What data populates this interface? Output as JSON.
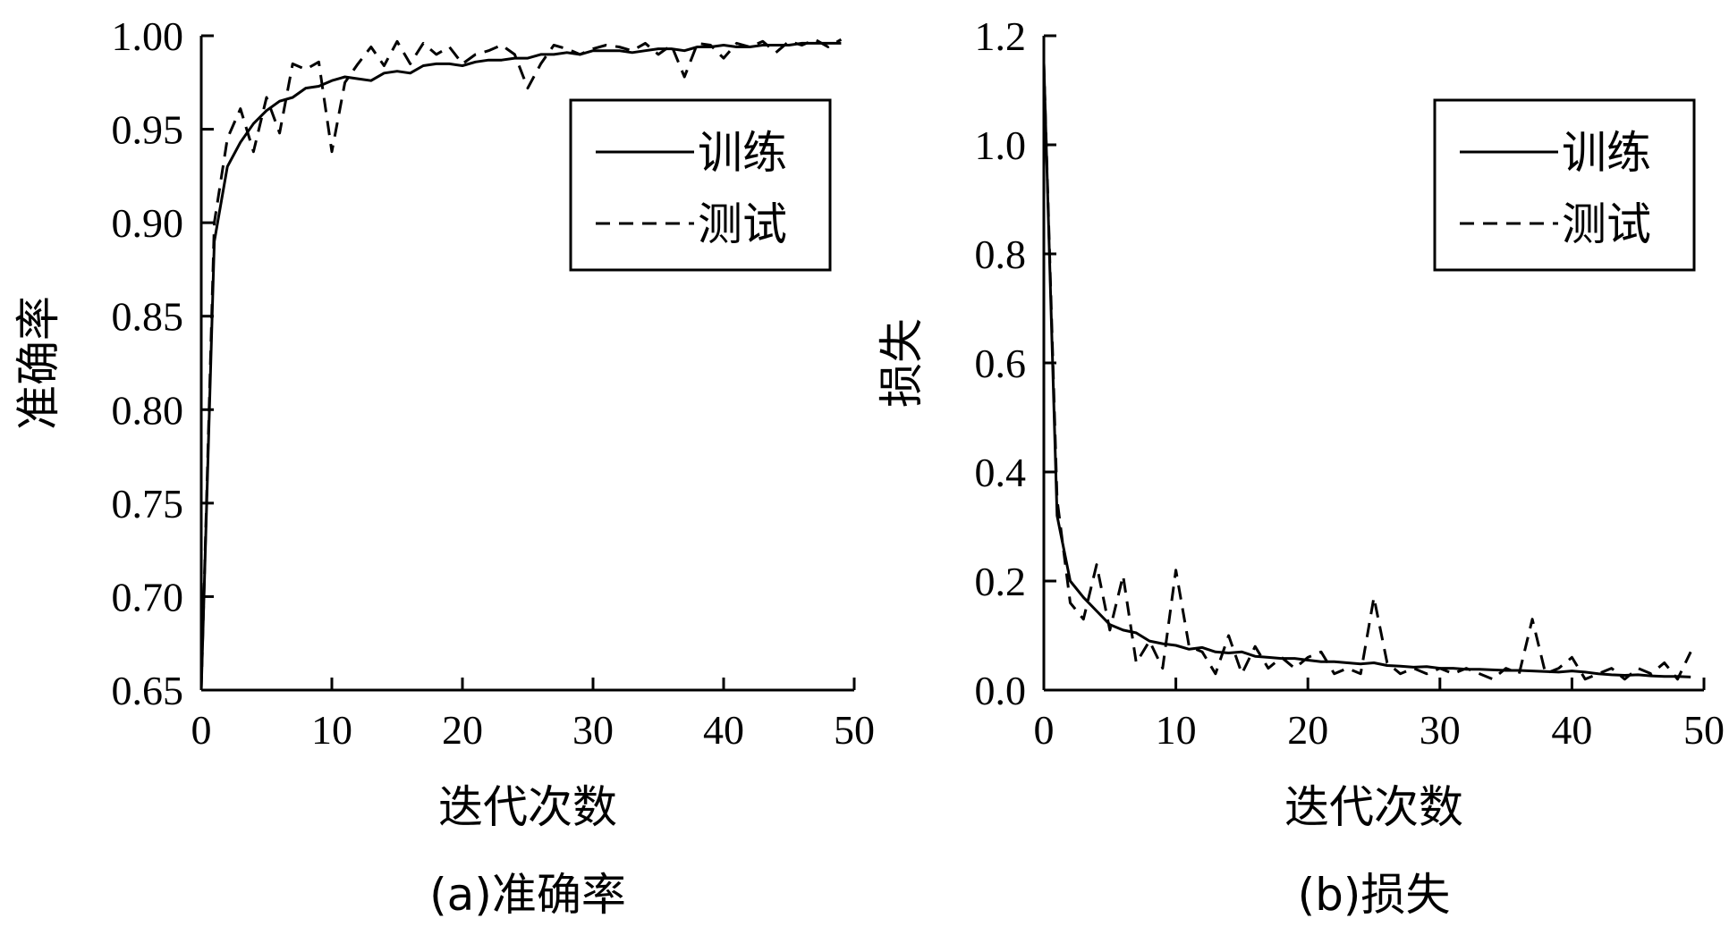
{
  "chart_data": [
    {
      "type": "line",
      "caption": "(a)准确率",
      "xlabel": "迭代次数",
      "ylabel": "准确率",
      "xlim": [
        0,
        50
      ],
      "ylim": [
        0.65,
        1.0
      ],
      "xticks": [
        "0",
        "10",
        "20",
        "30",
        "40",
        "50"
      ],
      "yticks": [
        "0.65",
        "0.70",
        "0.75",
        "0.80",
        "0.85",
        "0.90",
        "0.95",
        "1.00"
      ],
      "legend_position": "top-right",
      "series": [
        {
          "name": "训练",
          "style": "solid",
          "x": [
            0,
            1,
            2,
            3,
            4,
            5,
            6,
            7,
            8,
            9,
            10,
            11,
            12,
            13,
            14,
            15,
            16,
            17,
            18,
            19,
            20,
            21,
            22,
            23,
            24,
            25,
            26,
            27,
            28,
            29,
            30,
            31,
            32,
            33,
            34,
            35,
            36,
            37,
            38,
            39,
            40,
            41,
            42,
            43,
            44,
            45,
            46,
            47,
            48,
            49
          ],
          "values": [
            0.65,
            0.89,
            0.93,
            0.943,
            0.953,
            0.96,
            0.965,
            0.967,
            0.972,
            0.973,
            0.976,
            0.978,
            0.977,
            0.976,
            0.98,
            0.981,
            0.98,
            0.984,
            0.985,
            0.985,
            0.984,
            0.986,
            0.987,
            0.987,
            0.988,
            0.988,
            0.99,
            0.99,
            0.991,
            0.99,
            0.992,
            0.992,
            0.992,
            0.991,
            0.992,
            0.993,
            0.993,
            0.992,
            0.994,
            0.994,
            0.995,
            0.994,
            0.994,
            0.995,
            0.995,
            0.995,
            0.996,
            0.996,
            0.996,
            0.996
          ]
        },
        {
          "name": "测试",
          "style": "dashed",
          "x": [
            0,
            1,
            2,
            3,
            4,
            5,
            6,
            7,
            8,
            9,
            10,
            11,
            12,
            13,
            14,
            15,
            16,
            17,
            18,
            19,
            20,
            21,
            22,
            23,
            24,
            25,
            26,
            27,
            28,
            29,
            30,
            31,
            32,
            33,
            34,
            35,
            36,
            37,
            38,
            39,
            40,
            41,
            42,
            43,
            44,
            45,
            46,
            47,
            48,
            49
          ],
          "values": [
            0.65,
            0.9,
            0.945,
            0.961,
            0.938,
            0.967,
            0.948,
            0.985,
            0.982,
            0.986,
            0.938,
            0.975,
            0.985,
            0.994,
            0.984,
            0.997,
            0.985,
            0.996,
            0.99,
            0.994,
            0.985,
            0.99,
            0.992,
            0.995,
            0.99,
            0.972,
            0.985,
            0.995,
            0.993,
            0.99,
            0.993,
            0.995,
            0.994,
            0.992,
            0.996,
            0.99,
            0.995,
            0.978,
            0.996,
            0.995,
            0.988,
            0.996,
            0.994,
            0.997,
            0.991,
            0.997,
            0.995,
            0.998,
            0.994,
            0.998
          ]
        }
      ]
    },
    {
      "type": "line",
      "caption": "(b)损失",
      "xlabel": "迭代次数",
      "ylabel": "损失",
      "xlim": [
        0,
        50
      ],
      "ylim": [
        0.0,
        1.2
      ],
      "xticks": [
        "0",
        "10",
        "20",
        "30",
        "40",
        "50"
      ],
      "yticks": [
        "0.0",
        "0.2",
        "0.4",
        "0.6",
        "0.8",
        "1.0",
        "1.2"
      ],
      "legend_position": "top-right",
      "series": [
        {
          "name": "训练",
          "style": "solid",
          "x": [
            0,
            1,
            2,
            3,
            4,
            5,
            6,
            7,
            8,
            9,
            10,
            11,
            12,
            13,
            14,
            15,
            16,
            17,
            18,
            19,
            20,
            21,
            22,
            23,
            24,
            25,
            26,
            27,
            28,
            29,
            30,
            31,
            32,
            33,
            34,
            35,
            36,
            37,
            38,
            39,
            40,
            41,
            42,
            43,
            44,
            45,
            46,
            47,
            48,
            49
          ],
          "values": [
            1.15,
            0.32,
            0.2,
            0.17,
            0.145,
            0.12,
            0.11,
            0.105,
            0.09,
            0.085,
            0.082,
            0.075,
            0.078,
            0.07,
            0.068,
            0.07,
            0.062,
            0.06,
            0.058,
            0.058,
            0.055,
            0.052,
            0.052,
            0.05,
            0.048,
            0.05,
            0.045,
            0.044,
            0.042,
            0.043,
            0.04,
            0.04,
            0.038,
            0.038,
            0.037,
            0.036,
            0.036,
            0.035,
            0.034,
            0.033,
            0.035,
            0.033,
            0.03,
            0.028,
            0.027,
            0.028,
            0.026,
            0.025,
            0.025,
            0.024
          ]
        },
        {
          "name": "测试",
          "style": "dashed",
          "x": [
            0,
            1,
            2,
            3,
            4,
            5,
            6,
            7,
            8,
            9,
            10,
            11,
            12,
            13,
            14,
            15,
            16,
            17,
            18,
            19,
            20,
            21,
            22,
            23,
            24,
            25,
            26,
            27,
            28,
            29,
            30,
            31,
            32,
            33,
            34,
            35,
            36,
            37,
            38,
            39,
            40,
            41,
            42,
            43,
            44,
            45,
            46,
            47,
            48,
            49
          ],
          "values": [
            1.15,
            0.35,
            0.16,
            0.13,
            0.23,
            0.11,
            0.21,
            0.05,
            0.09,
            0.04,
            0.22,
            0.08,
            0.07,
            0.03,
            0.1,
            0.03,
            0.08,
            0.04,
            0.06,
            0.04,
            0.06,
            0.07,
            0.03,
            0.04,
            0.03,
            0.17,
            0.05,
            0.03,
            0.04,
            0.03,
            0.04,
            0.03,
            0.04,
            0.03,
            0.02,
            0.04,
            0.03,
            0.13,
            0.03,
            0.04,
            0.06,
            0.02,
            0.03,
            0.04,
            0.02,
            0.04,
            0.03,
            0.05,
            0.02,
            0.07
          ]
        }
      ]
    }
  ]
}
